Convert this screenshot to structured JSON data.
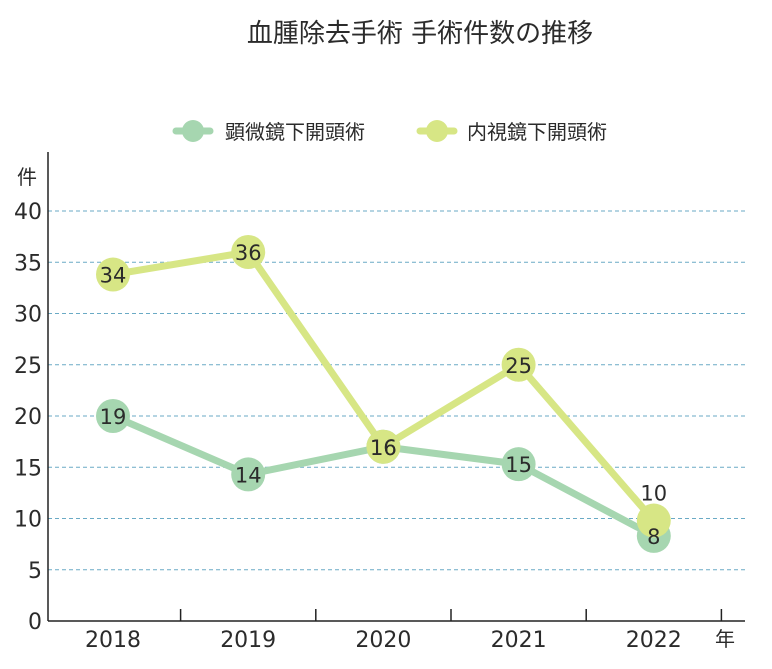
{
  "chart_data": {
    "type": "line",
    "title": "血腫除去手術 手術件数の推移",
    "ylabel": "件",
    "xlabel": "年",
    "categories": [
      "2018",
      "2019",
      "2020",
      "2021",
      "2022"
    ],
    "ylim": [
      0,
      40
    ],
    "yticks": [
      0,
      5,
      10,
      15,
      20,
      25,
      30,
      35,
      40
    ],
    "grid": "horizontal-dashed",
    "legend_position": "top",
    "series": [
      {
        "name": "顕微鏡下開頭術",
        "color": "#a6d6b0",
        "values": [
          19,
          14,
          16,
          15,
          8
        ],
        "point_y": [
          20,
          14.3,
          17,
          15.3,
          8.3
        ]
      },
      {
        "name": "内視鏡下開頭術",
        "color": "#d7e685",
        "values": [
          34,
          36,
          16,
          25,
          10
        ],
        "point_y": [
          33.8,
          36,
          17,
          25,
          9.8
        ]
      }
    ]
  }
}
